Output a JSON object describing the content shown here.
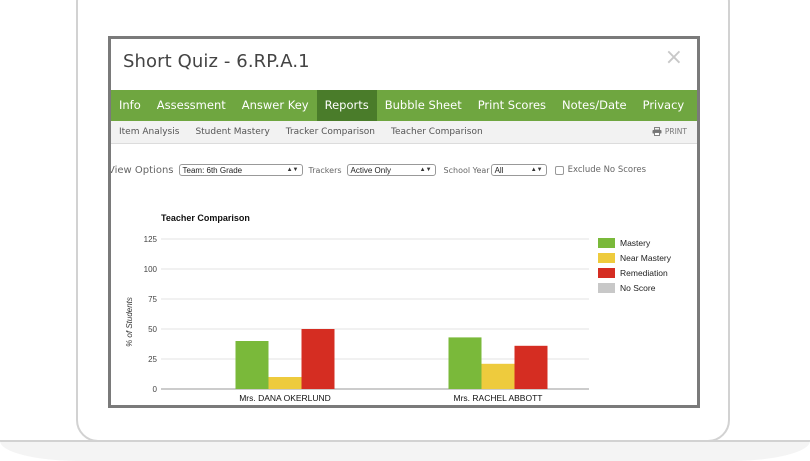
{
  "modal": {
    "title": "Short Quiz - 6.RP.A.1",
    "close_symbol": "×"
  },
  "nav": {
    "items": [
      "Info",
      "Assessment",
      "Answer Key",
      "Reports",
      "Bubble Sheet",
      "Print Scores",
      "Notes/Date",
      "Privacy"
    ],
    "active": "Reports",
    "accent_color": "#6fa640"
  },
  "subnav": {
    "items": [
      "Item Analysis",
      "Student Mastery",
      "Tracker Comparison",
      "Teacher Comparison"
    ],
    "print_label": "PRINT"
  },
  "options": {
    "view_label": "View Options",
    "team_value": "Team: 6th Grade",
    "trackers_label": "Trackers",
    "trackers_value": "Active Only",
    "year_label": "School Year",
    "year_value": "All",
    "exclude_label": "Exclude No Scores"
  },
  "chart_data": {
    "type": "bar",
    "title": "Teacher Comparison",
    "ylabel": "% of Students",
    "xlabel": "",
    "ylim": [
      0,
      125
    ],
    "yticks": [
      0,
      25,
      50,
      75,
      100,
      125
    ],
    "categories": [
      "Mrs. DANA OKERLUND",
      "Mrs. RACHEL ABBOTT"
    ],
    "series": [
      {
        "name": "Mastery",
        "color": "#7ab93a",
        "values": [
          40,
          43
        ]
      },
      {
        "name": "Near Mastery",
        "color": "#eecb3d",
        "values": [
          10,
          21
        ]
      },
      {
        "name": "Remediation",
        "color": "#d52d22",
        "values": [
          50,
          36
        ]
      },
      {
        "name": "No Score",
        "color": "#c8c8c8",
        "values": [
          0,
          0
        ]
      }
    ],
    "grid": true,
    "legend": "right"
  }
}
